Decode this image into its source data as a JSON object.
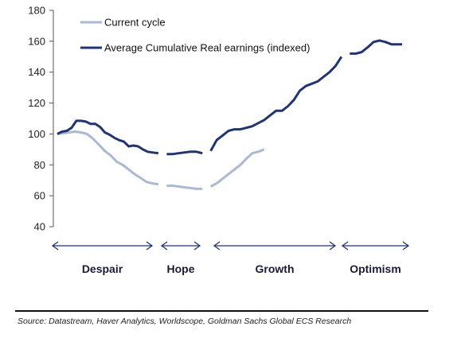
{
  "chart_data": {
    "type": "line",
    "ylim": [
      40,
      180
    ],
    "yticks": [
      40,
      60,
      80,
      100,
      120,
      140,
      160,
      180
    ],
    "grid": false,
    "legend_position": "top-left",
    "colors": {
      "current": "#a9b9d6",
      "average": "#1f3478",
      "axis": "#555555"
    },
    "series": [
      {
        "name": "Current cycle",
        "key": "current",
        "segments": [
          [
            [
              0,
              100
            ],
            [
              5,
              100.5
            ],
            [
              10,
              101
            ],
            [
              15,
              101.5
            ],
            [
              20,
              101
            ],
            [
              25,
              100
            ],
            [
              30,
              97
            ],
            [
              35,
              93
            ],
            [
              40,
              89
            ],
            [
              45,
              86
            ],
            [
              50,
              82
            ],
            [
              55,
              80
            ],
            [
              60,
              77
            ],
            [
              65,
              74
            ],
            [
              70,
              71.5
            ],
            [
              75,
              69
            ],
            [
              80,
              68
            ],
            [
              85,
              67.5
            ]
          ],
          [
            [
              92,
              66.5
            ],
            [
              97,
              66.5
            ],
            [
              102,
              66
            ],
            [
              107,
              65.5
            ],
            [
              112,
              65
            ],
            [
              117,
              64.5
            ],
            [
              122,
              64.5
            ]
          ],
          [
            [
              129,
              66
            ],
            [
              134,
              68
            ],
            [
              139,
              71
            ],
            [
              144,
              74
            ],
            [
              149,
              77
            ],
            [
              154,
              80
            ],
            [
              159,
              84
            ],
            [
              164,
              87.5
            ],
            [
              169,
              88.5
            ],
            [
              174,
              90
            ]
          ]
        ]
      },
      {
        "name": "Average Cumulative Real earnings (indexed)",
        "key": "average",
        "segments": [
          [
            [
              0,
              100
            ],
            [
              4,
              101.5
            ],
            [
              8,
              102
            ],
            [
              12,
              104
            ],
            [
              16,
              108.5
            ],
            [
              20,
              108.5
            ],
            [
              24,
              108
            ],
            [
              28,
              106.5
            ],
            [
              32,
              106.5
            ],
            [
              36,
              104.5
            ],
            [
              40,
              101
            ],
            [
              44,
              99.5
            ],
            [
              48,
              97.5
            ],
            [
              52,
              96
            ],
            [
              56,
              95
            ],
            [
              60,
              92
            ],
            [
              64,
              92.5
            ],
            [
              68,
              92
            ],
            [
              72,
              90
            ],
            [
              76,
              88.5
            ],
            [
              80,
              88
            ],
            [
              85,
              87.5
            ]
          ],
          [
            [
              92,
              87
            ],
            [
              97,
              87
            ],
            [
              102,
              87.5
            ],
            [
              107,
              88
            ],
            [
              112,
              88.5
            ],
            [
              117,
              88.5
            ],
            [
              122,
              87.5
            ]
          ],
          [
            [
              129,
              89
            ],
            [
              134,
              96
            ],
            [
              139,
              99
            ],
            [
              144,
              102
            ],
            [
              149,
              103
            ],
            [
              154,
              103
            ],
            [
              159,
              104
            ],
            [
              164,
              105
            ],
            [
              169,
              107
            ],
            [
              174,
              109
            ],
            [
              179,
              112
            ],
            [
              184,
              115
            ],
            [
              189,
              115
            ],
            [
              194,
              118
            ],
            [
              199,
              122
            ],
            [
              204,
              128
            ],
            [
              209,
              131
            ],
            [
              214,
              132.5
            ],
            [
              219,
              134
            ],
            [
              224,
              137
            ],
            [
              229,
              140
            ],
            [
              234,
              144
            ],
            [
              239,
              150
            ]
          ],
          [
            [
              246,
              152
            ],
            [
              251,
              152
            ],
            [
              256,
              153
            ],
            [
              261,
              156
            ],
            [
              266,
              159.5
            ],
            [
              271,
              160.5
            ],
            [
              276,
              159.5
            ],
            [
              281,
              158
            ],
            [
              286,
              158
            ],
            [
              290,
              158
            ]
          ]
        ]
      }
    ],
    "phases": [
      {
        "label": "Despair",
        "start": 0,
        "end": 85
      },
      {
        "label": "Hope",
        "start": 92,
        "end": 122
      },
      {
        "label": "Growth",
        "start": 129,
        "end": 239
      },
      {
        "label": "Optimism",
        "start": 246,
        "end": 290
      }
    ]
  },
  "source": "Source: Datastream, Haver Analytics, Worldscope, Goldman Sachs Global ECS Research"
}
